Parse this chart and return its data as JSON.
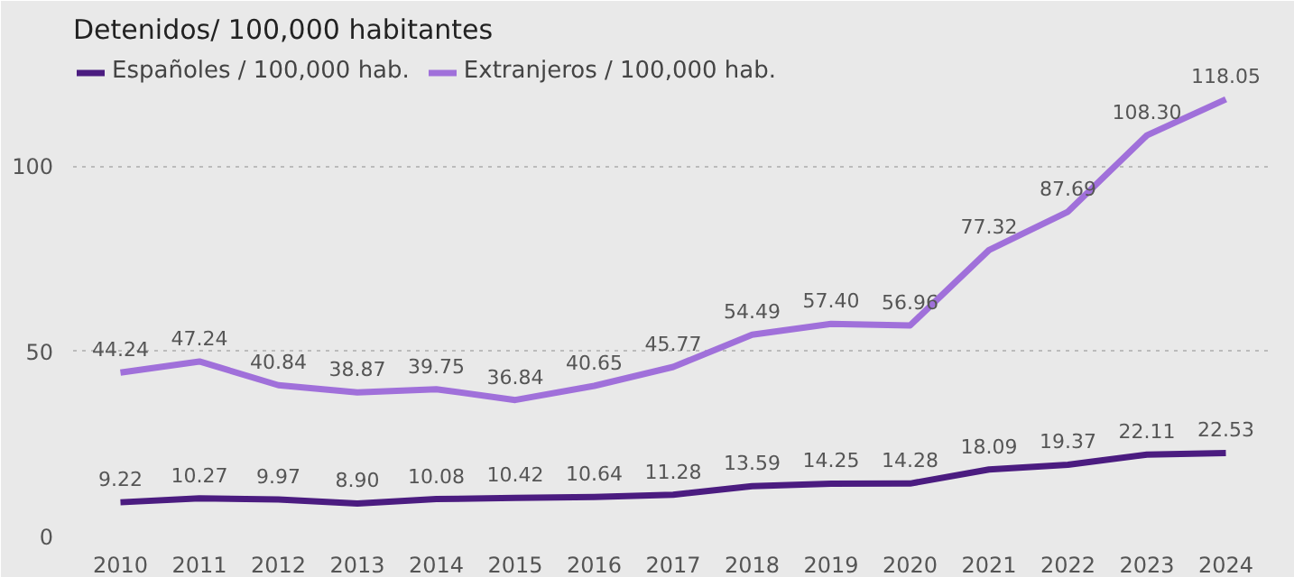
{
  "chart_data": {
    "type": "line",
    "title": "Detenidos/ 100,000 habitantes",
    "categories": [
      "2010",
      "2011",
      "2012",
      "2013",
      "2014",
      "2015",
      "2016",
      "2017",
      "2018",
      "2019",
      "2020",
      "2021",
      "2022",
      "2023",
      "2024"
    ],
    "series": [
      {
        "name": "Españoles / 100,000 hab.",
        "color": "#4b1c80",
        "values": [
          9.22,
          10.27,
          9.97,
          8.9,
          10.08,
          10.42,
          10.64,
          11.28,
          13.59,
          14.25,
          14.28,
          18.09,
          19.37,
          22.11,
          22.53
        ],
        "value_labels": [
          "9.22",
          "10.27",
          "9.97",
          "8.90",
          "10.08",
          "10.42",
          "10.64",
          "11.28",
          "13.59",
          "14.25",
          "14.28",
          "18.09",
          "19.37",
          "22.11",
          "22.53"
        ]
      },
      {
        "name": "Extranjeros / 100,000 hab.",
        "color": "#a070da",
        "values": [
          44.24,
          47.24,
          40.84,
          38.87,
          39.75,
          36.84,
          40.65,
          45.77,
          54.49,
          57.4,
          56.96,
          77.32,
          87.69,
          108.3,
          118.05
        ],
        "value_labels": [
          "44.24",
          "47.24",
          "40.84",
          "38.87",
          "39.75",
          "36.84",
          "40.65",
          "45.77",
          "54.49",
          "57.40",
          "56.96",
          "77.32",
          "87.69",
          "108.30",
          "118.05"
        ]
      }
    ],
    "ylim": [
      0,
      130
    ],
    "yticks": [
      0,
      50,
      100
    ],
    "grid": "y",
    "legend": "top left",
    "marker": "none",
    "line_style": "solid"
  }
}
